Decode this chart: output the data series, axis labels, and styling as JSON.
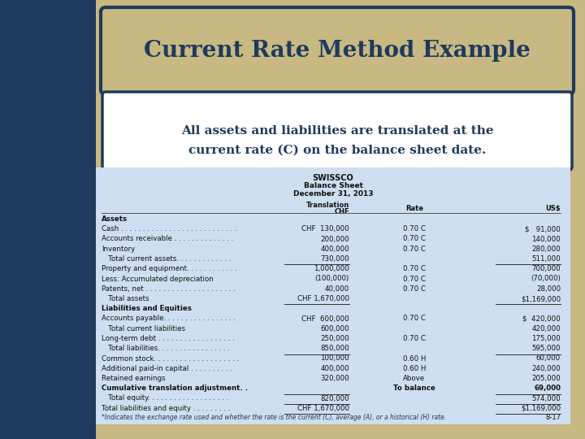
{
  "title": "Current Rate Method Example",
  "subtitle_line1": "All assets and liabilities are translated at the",
  "subtitle_line2": "current rate (C) on the balance sheet date.",
  "company": "SWISSCO",
  "sheet_type": "Balance Sheet",
  "date": "December 31, 2013",
  "footnote": "*Indicates the exchange rate used and whether the rate is the current (C), average (A), or a historical (H) rate.",
  "page_num": "8-17",
  "bg_outer": "#c8b882",
  "bg_sidebar": "#1e3a5c",
  "bg_title_box": "#c8b882",
  "bg_subtitle_box": "#ffffff",
  "bg_table": "#cddff0",
  "title_color": "#1e3a5c",
  "subtitle_color": "#1e3a5c",
  "border_color": "#1e3a5c",
  "table_rows": [
    {
      "label": "Assets",
      "chf": "",
      "rate": "",
      "usd": "",
      "bold": true,
      "indent": false,
      "underline_chf": false,
      "underline_usd": false
    },
    {
      "label": "Cash . . . . . . . . . . . . . . . . . . . . . . . . . . .",
      "chf": "CHF  130,000",
      "rate": "0.70 C",
      "usd": "$   91,000",
      "bold": false,
      "indent": false,
      "underline_chf": false,
      "underline_usd": false
    },
    {
      "label": "Accounts receivable . . . . . . . . . . . . . .",
      "chf": "200,000",
      "rate": "0.70 C",
      "usd": "140,000",
      "bold": false,
      "indent": false,
      "underline_chf": false,
      "underline_usd": false
    },
    {
      "label": "Inventory",
      "chf": "400,000",
      "rate": "0.70 C",
      "usd": "280,000",
      "bold": false,
      "indent": false,
      "underline_chf": false,
      "underline_usd": false
    },
    {
      "label": "   Total current assets. . . . . . . . . . . . .",
      "chf": "730,000",
      "rate": "",
      "usd": "511,000",
      "bold": false,
      "indent": true,
      "underline_chf": true,
      "underline_usd": true
    },
    {
      "label": "Property and equipment. . . . . . . . . . . .",
      "chf": "1,000,000",
      "rate": "0.70 C",
      "usd": "700,000",
      "bold": false,
      "indent": false,
      "underline_chf": false,
      "underline_usd": false
    },
    {
      "label": "Less: Accumulated depreciation",
      "chf": "(100,000)",
      "rate": "0.70 C",
      "usd": "(70,000)",
      "bold": false,
      "indent": false,
      "underline_chf": false,
      "underline_usd": false
    },
    {
      "label": "Patents, net . . . . . . . . . . . . . . . . . . . . .",
      "chf": "40,000",
      "rate": "0.70 C",
      "usd": "28,000",
      "bold": false,
      "indent": false,
      "underline_chf": false,
      "underline_usd": false
    },
    {
      "label": "   Total assets",
      "chf": "CHF 1,670,000",
      "rate": "",
      "usd": "$1,169,000",
      "bold": false,
      "indent": true,
      "underline_chf": true,
      "underline_usd": true
    },
    {
      "label": "Liabilities and Equities",
      "chf": "",
      "rate": "",
      "usd": "",
      "bold": true,
      "indent": false,
      "underline_chf": false,
      "underline_usd": false
    },
    {
      "label": "Accounts payable. . . . . . . . . . . . . . . . .",
      "chf": "CHF  600,000",
      "rate": "0.70 C",
      "usd": "$  420,000",
      "bold": false,
      "indent": false,
      "underline_chf": false,
      "underline_usd": false
    },
    {
      "label": "   Total current liabilities",
      "chf": "600,000",
      "rate": "",
      "usd": "420,000",
      "bold": false,
      "indent": true,
      "underline_chf": false,
      "underline_usd": false
    },
    {
      "label": "Long-term debt . . . . . . . . . . . . . . . . . .",
      "chf": "250,000",
      "rate": "0.70 C",
      "usd": "175,000",
      "bold": false,
      "indent": false,
      "underline_chf": false,
      "underline_usd": false
    },
    {
      "label": "   Total liabilities. . . . . . . . . . . . . . . . .",
      "chf": "850,000",
      "rate": "",
      "usd": "595,000",
      "bold": false,
      "indent": true,
      "underline_chf": true,
      "underline_usd": true
    },
    {
      "label": "Common stock. . . . . . . . . . . . . . . . . . . .",
      "chf": "100,000",
      "rate": "0.60 H",
      "usd": "60,000",
      "bold": false,
      "indent": false,
      "underline_chf": false,
      "underline_usd": false
    },
    {
      "label": "Additional paid-in capital . . . . . . . . . .",
      "chf": "400,000",
      "rate": "0.60 H",
      "usd": "240,000",
      "bold": false,
      "indent": false,
      "underline_chf": false,
      "underline_usd": false
    },
    {
      "label": "Retained earnings",
      "chf": "320,000",
      "rate": "Above",
      "usd": "205,000",
      "bold": false,
      "indent": false,
      "underline_chf": false,
      "underline_usd": false
    },
    {
      "label": "Cumulative translation adjustment. .",
      "chf": "",
      "rate": "To balance",
      "usd": "69,000",
      "bold": true,
      "indent": false,
      "underline_chf": true,
      "underline_usd": true
    },
    {
      "label": "   Total equity. . . . . . . . . . . . . . . . . . .",
      "chf": "820,000",
      "rate": "",
      "usd": "574,000",
      "bold": false,
      "indent": true,
      "underline_chf": true,
      "underline_usd": true
    },
    {
      "label": "Total liabilities and equity . . . . . . . . .",
      "chf": "CHF 1,670,000",
      "rate": "",
      "usd": "$1,169,000",
      "bold": false,
      "indent": false,
      "underline_chf": true,
      "underline_usd": true
    }
  ]
}
